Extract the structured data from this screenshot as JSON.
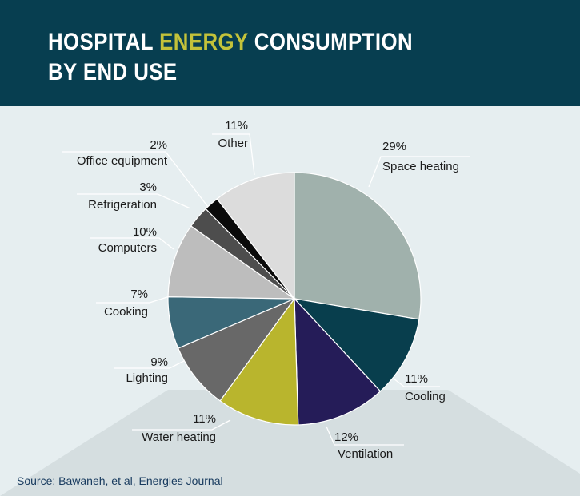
{
  "title": {
    "part1": "HOSPITAL ",
    "highlight": "ENERGY",
    "part2": " CONSUMPTION",
    "line2": "BY END USE"
  },
  "source": "Source: Bawaneh, et al, Energies Journal",
  "colors": {
    "header_bg": "#073e50",
    "highlight": "#c3c23a",
    "page_bg": "#e6eef0"
  },
  "chart_data": {
    "type": "pie",
    "title": "HOSPITAL ENERGY CONSUMPTION BY END USE",
    "start": "12 o'clock, clockwise",
    "slices": [
      {
        "label": "Space heating",
        "value": 29,
        "pct_label": "29%",
        "color": "#a0b1ac"
      },
      {
        "label": "Cooling",
        "value": 11,
        "pct_label": "11%",
        "color": "#083e4d"
      },
      {
        "label": "Ventilation",
        "value": 12,
        "pct_label": "12%",
        "color": "#251c58"
      },
      {
        "label": "Water heating",
        "value": 11,
        "pct_label": "11%",
        "color": "#b9b52d"
      },
      {
        "label": "Lighting",
        "value": 9,
        "pct_label": "9%",
        "color": "#686868"
      },
      {
        "label": "Cooking",
        "value": 7,
        "pct_label": "7%",
        "color": "#3a6878"
      },
      {
        "label": "Computers",
        "value": 10,
        "pct_label": "10%",
        "color": "#bdbdbd"
      },
      {
        "label": "Refrigeration",
        "value": 3,
        "pct_label": "3%",
        "color": "#4d4d4d"
      },
      {
        "label": "Office equipment",
        "value": 2,
        "pct_label": "2%",
        "color": "#0a0a0a"
      },
      {
        "label": "Other",
        "value": 11,
        "pct_label": "11%",
        "color": "#dcdcdc"
      }
    ]
  }
}
